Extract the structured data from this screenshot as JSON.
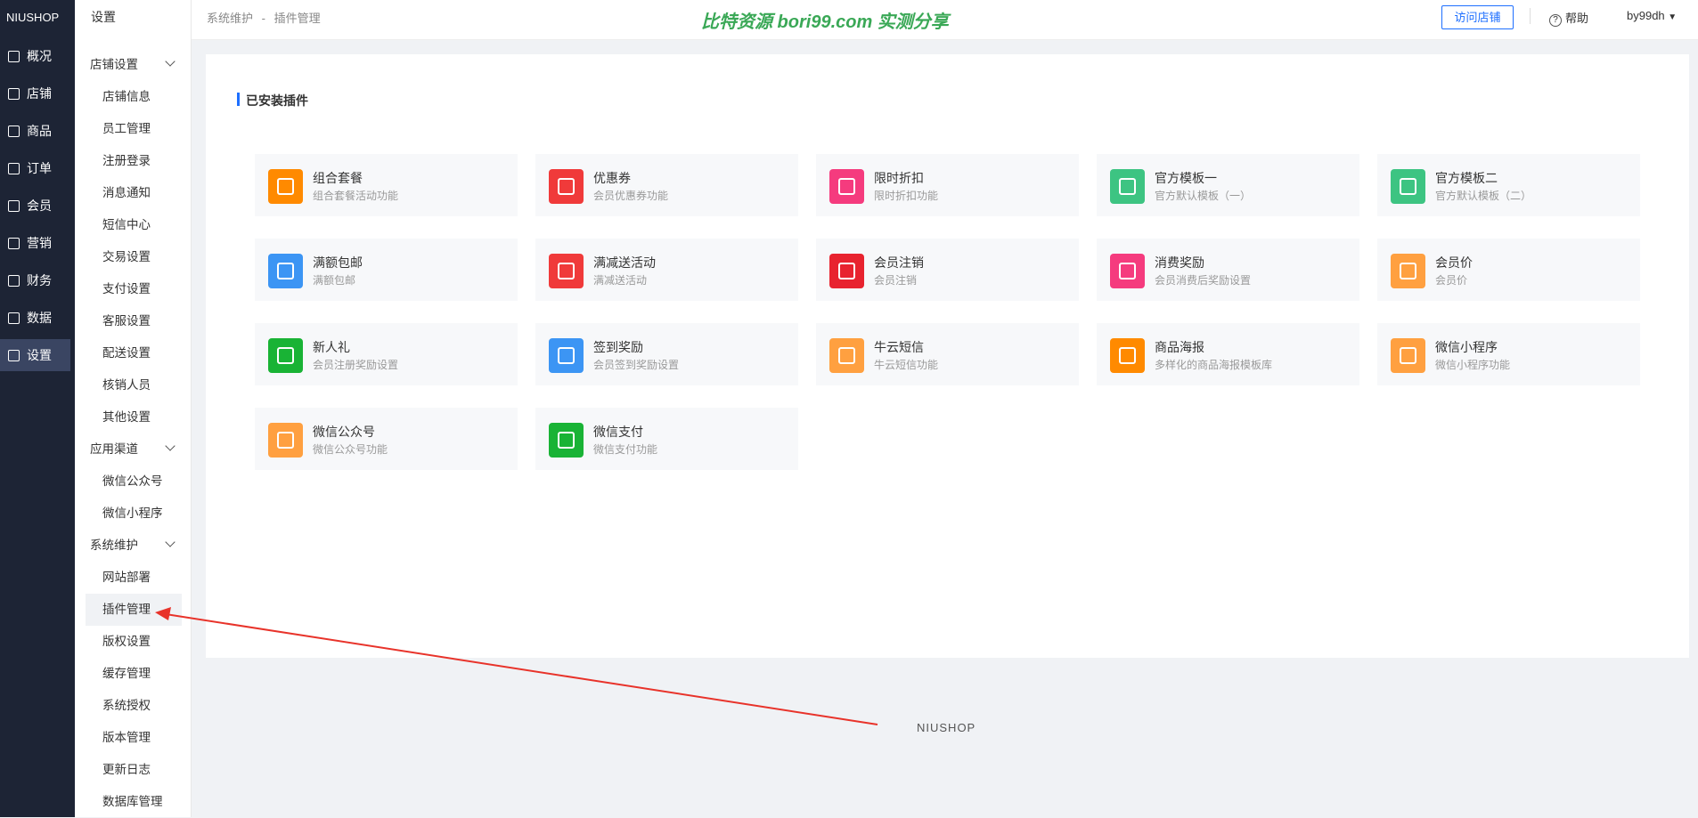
{
  "brand": "NIUSHOP",
  "nav": [
    "概况",
    "店铺",
    "商品",
    "订单",
    "会员",
    "营销",
    "财务",
    "数据",
    "设置"
  ],
  "sidebar": {
    "title": "设置",
    "groups": [
      {
        "title": "店铺设置",
        "items": [
          "店铺信息",
          "员工管理",
          "注册登录",
          "消息通知",
          "短信中心",
          "交易设置",
          "支付设置",
          "客服设置",
          "配送设置",
          "核销人员",
          "其他设置"
        ]
      },
      {
        "title": "应用渠道",
        "items": [
          "微信公众号",
          "微信小程序"
        ]
      },
      {
        "title": "系统维护",
        "items": [
          "网站部署",
          "插件管理",
          "版权设置",
          "缓存管理",
          "系统授权",
          "版本管理",
          "更新日志",
          "数据库管理"
        ]
      }
    ]
  },
  "header": {
    "breadcrumb": [
      "系统维护",
      "插件管理"
    ],
    "separator": "-",
    "watermark": "比特资源 bori99.com 实测分享",
    "visit": "访问店铺",
    "help": "帮助",
    "user": "by99dh"
  },
  "section_title": "已安装插件",
  "plugins": [
    {
      "name": "组合套餐",
      "desc": "组合套餐活动功能",
      "color": "#ff8a00"
    },
    {
      "name": "优惠券",
      "desc": "会员优惠券功能",
      "color": "#f03a3a"
    },
    {
      "name": "限时折扣",
      "desc": "限时折扣功能",
      "color": "#f53b7e"
    },
    {
      "name": "官方模板一",
      "desc": "官方默认模板（一）",
      "color": "#3dc482"
    },
    {
      "name": "官方模板二",
      "desc": "官方默认模板（二）",
      "color": "#3dc482"
    },
    {
      "name": "满额包邮",
      "desc": "满额包邮",
      "color": "#3c95f4"
    },
    {
      "name": "满减送活动",
      "desc": "满减送活动",
      "color": "#f03a3a"
    },
    {
      "name": "会员注销",
      "desc": "会员注销",
      "color": "#e8232f"
    },
    {
      "name": "消费奖励",
      "desc": "会员消费后奖励设置",
      "color": "#f53b7e"
    },
    {
      "name": "会员价",
      "desc": "会员价",
      "color": "#ffa040"
    },
    {
      "name": "新人礼",
      "desc": "会员注册奖励设置",
      "color": "#19b335"
    },
    {
      "name": "签到奖励",
      "desc": "会员签到奖励设置",
      "color": "#3c95f4"
    },
    {
      "name": "牛云短信",
      "desc": "牛云短信功能",
      "color": "#ffa040"
    },
    {
      "name": "商品海报",
      "desc": "多样化的商品海报模板库",
      "color": "#ff8a00"
    },
    {
      "name": "微信小程序",
      "desc": "微信小程序功能",
      "color": "#ffa040"
    },
    {
      "name": "微信公众号",
      "desc": "微信公众号功能",
      "color": "#ffa040"
    },
    {
      "name": "微信支付",
      "desc": "微信支付功能",
      "color": "#19b335"
    }
  ],
  "footer": "NIUSHOP"
}
